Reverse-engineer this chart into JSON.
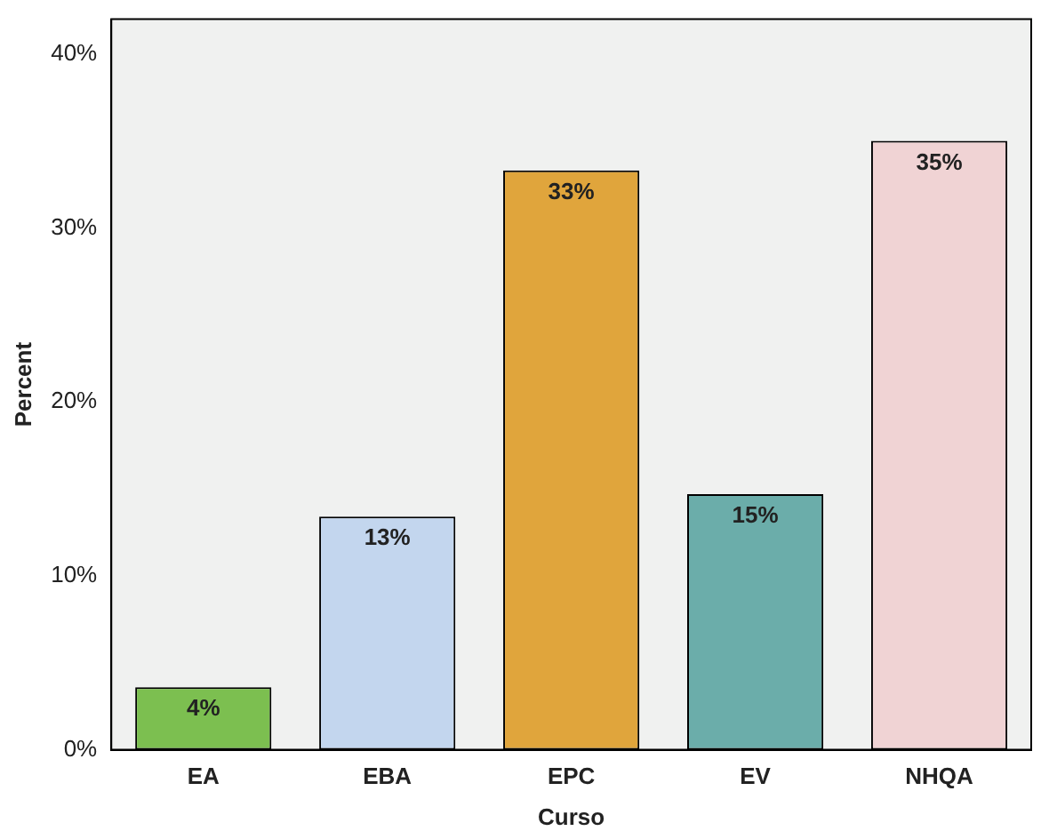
{
  "chart_data": {
    "type": "bar",
    "xlabel": "Curso",
    "ylabel": "Percent",
    "categories": [
      "EA",
      "EBA",
      "EPC",
      "EV",
      "NHQA"
    ],
    "values": [
      3.6,
      13.4,
      33.3,
      14.7,
      35.0
    ],
    "colors": [
      "#7cbf50",
      "#c3d6ee",
      "#e0a53c",
      "#6badaa",
      "#f0d3d4"
    ],
    "value_labels": [
      "4%",
      "13%",
      "33%",
      "15%",
      "35%"
    ],
    "ylim": [
      0,
      42
    ],
    "yticks": [
      {
        "value": 0,
        "label": "0%"
      },
      {
        "value": 10,
        "label": "10%"
      },
      {
        "value": 20,
        "label": "20%"
      },
      {
        "value": 30,
        "label": "30%"
      },
      {
        "value": 40,
        "label": "40%"
      }
    ],
    "grid": false,
    "legend": false
  }
}
